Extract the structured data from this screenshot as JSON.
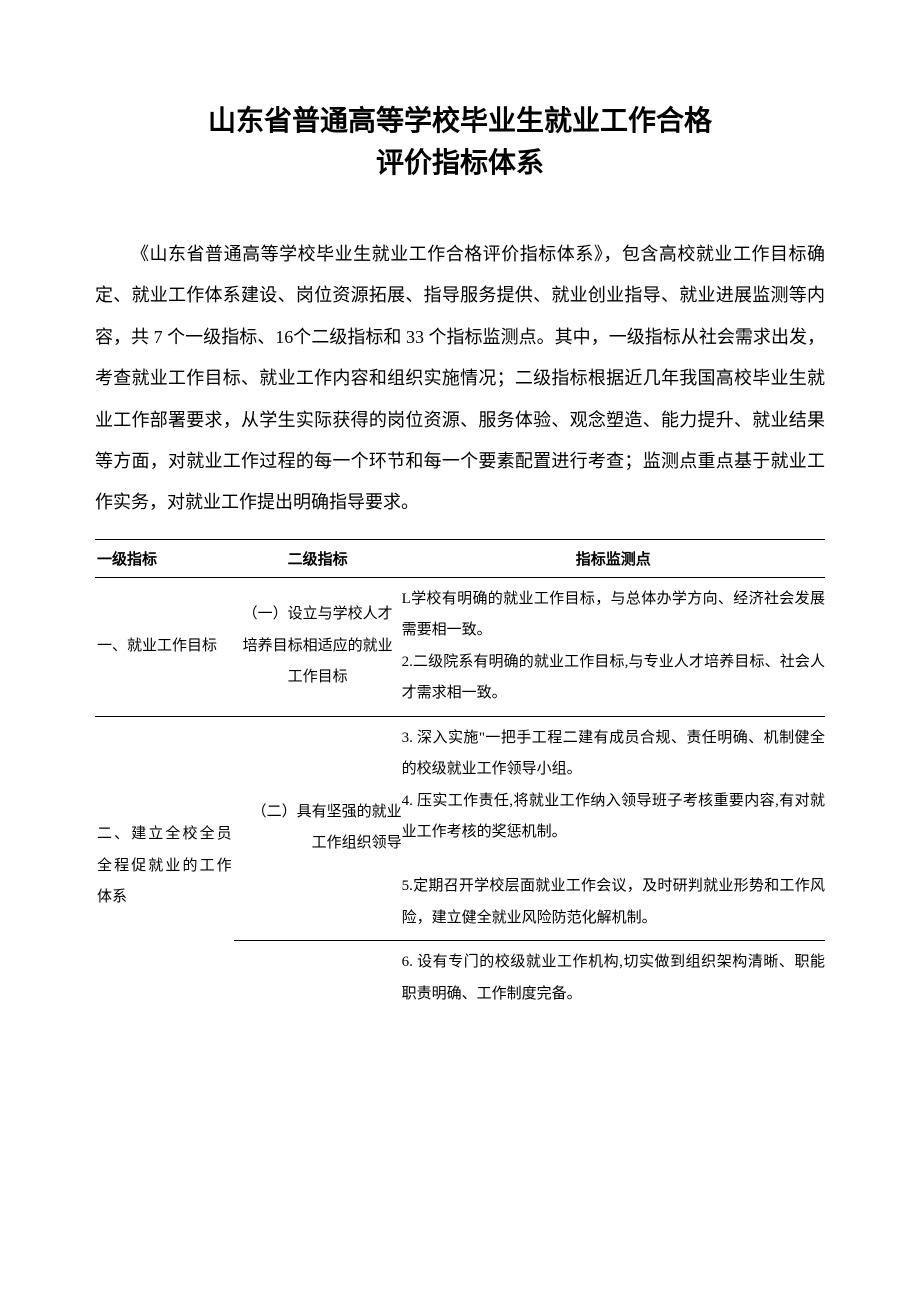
{
  "title_line1": "山东省普通高等学校毕业生就业工作合格",
  "title_line2": "评价指标体系",
  "intro": "《山东省普通高等学校毕业生就业工作合格评价指标体系》，包含高校就业工作目标确定、就业工作体系建设、岗位资源拓展、指导服务提供、就业创业指导、就业进展监测等内容，共 7 个一级指标、16个二级指标和 33 个指标监测点。其中，一级指标从社会需求出发，考查就业工作目标、就业工作内容和组织实施情况；二级指标根据近几年我国高校毕业生就业工作部署要求，从学生实际获得的岗位资源、服务体验、观念塑造、能力提升、就业结果等方面，对就业工作过程的每一个环节和每一个要素配置进行考查；监测点重点基于就业工作实务，对就业工作提出明确指导要求。",
  "headers": {
    "col1": "一级指标",
    "col2": "二级指标",
    "col3": "指标监测点"
  },
  "row1": {
    "level1": "一、就业工作目标",
    "level2": "（一）设立与学校人才培养目标相适应的就业工作目标",
    "point1": "L学校有明确的就业工作目标，与总体办学方向、经济社会发展需要相一致。",
    "point2": "2.二级院系有明确的就业工作目标,与专业人才培养目标、社会人才需求相一致。"
  },
  "row2": {
    "level1": "二、建立全校全员全程促就业的工作体系",
    "level2": "（二）具有坚强的就业工作组织领导",
    "point3": "3. 深入实施\"一把手工程二建有成员合规、责任明确、机制健全的校级就业工作领导小组。",
    "point4a": "4. 压实工作责任,将就业工作纳入领导班子考核重要内容,有对就业工作考核的奖惩机制。",
    "point5": "5.定期召开学校层面就业工作会议，及时研判就业形势和工作风险，建立健全就业风险防范化解机制。",
    "point6": "6. 设有专门的校级就业工作机构,切实做到组织架构清晰、职能职责明确、工作制度完备。"
  }
}
